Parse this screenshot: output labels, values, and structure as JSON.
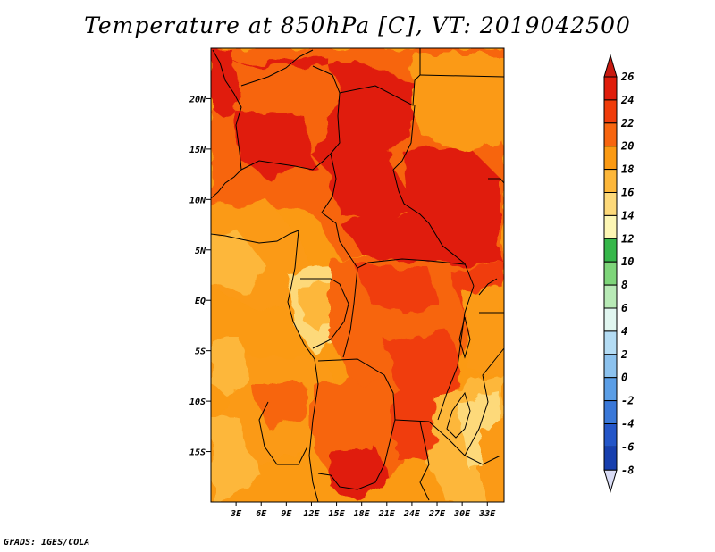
{
  "title": "Temperature at 850hPa [C], VT: 2019042500",
  "credit": "GrADS: IGES/COLA",
  "chart_data": {
    "type": "heatmap",
    "variable": "Temperature at 850hPa",
    "units": "C",
    "valid_time": "2019042500",
    "lon_range": [
      0,
      35
    ],
    "lat_range": [
      -20,
      25
    ],
    "x_ticks": [
      "3E",
      "6E",
      "9E",
      "12E",
      "15E",
      "18E",
      "21E",
      "24E",
      "27E",
      "30E",
      "33E"
    ],
    "x_tick_values": [
      3,
      6,
      9,
      12,
      15,
      18,
      21,
      24,
      27,
      30,
      33
    ],
    "y_ticks": [
      "20N",
      "15N",
      "10N",
      "5N",
      "EQ",
      "5S",
      "10S",
      "15S"
    ],
    "y_tick_values": [
      20,
      15,
      10,
      5,
      0,
      -5,
      -10,
      -15
    ],
    "colorbar": {
      "levels": [
        "26",
        "24",
        "22",
        "20",
        "18",
        "16",
        "14",
        "12",
        "10",
        "8",
        "6",
        "4",
        "2",
        "0",
        "-2",
        "-4",
        "-6",
        "-8"
      ],
      "colors": [
        "#e01d0b",
        "#f03c0a",
        "#f7650f",
        "#fb9a13",
        "#fdb73a",
        "#fdd97a",
        "#fdf6b4",
        "#36b74a",
        "#7ed57a",
        "#b8eab6",
        "#e1f6f0",
        "#b4dcf4",
        "#8cc2ee",
        "#5b9ee6",
        "#3a78d8",
        "#2456c8",
        "#173fae",
        "#0f2090",
        "#0a0c68"
      ],
      "top_color": "#c81a10",
      "bottom_color": "#d9dcf5"
    }
  }
}
